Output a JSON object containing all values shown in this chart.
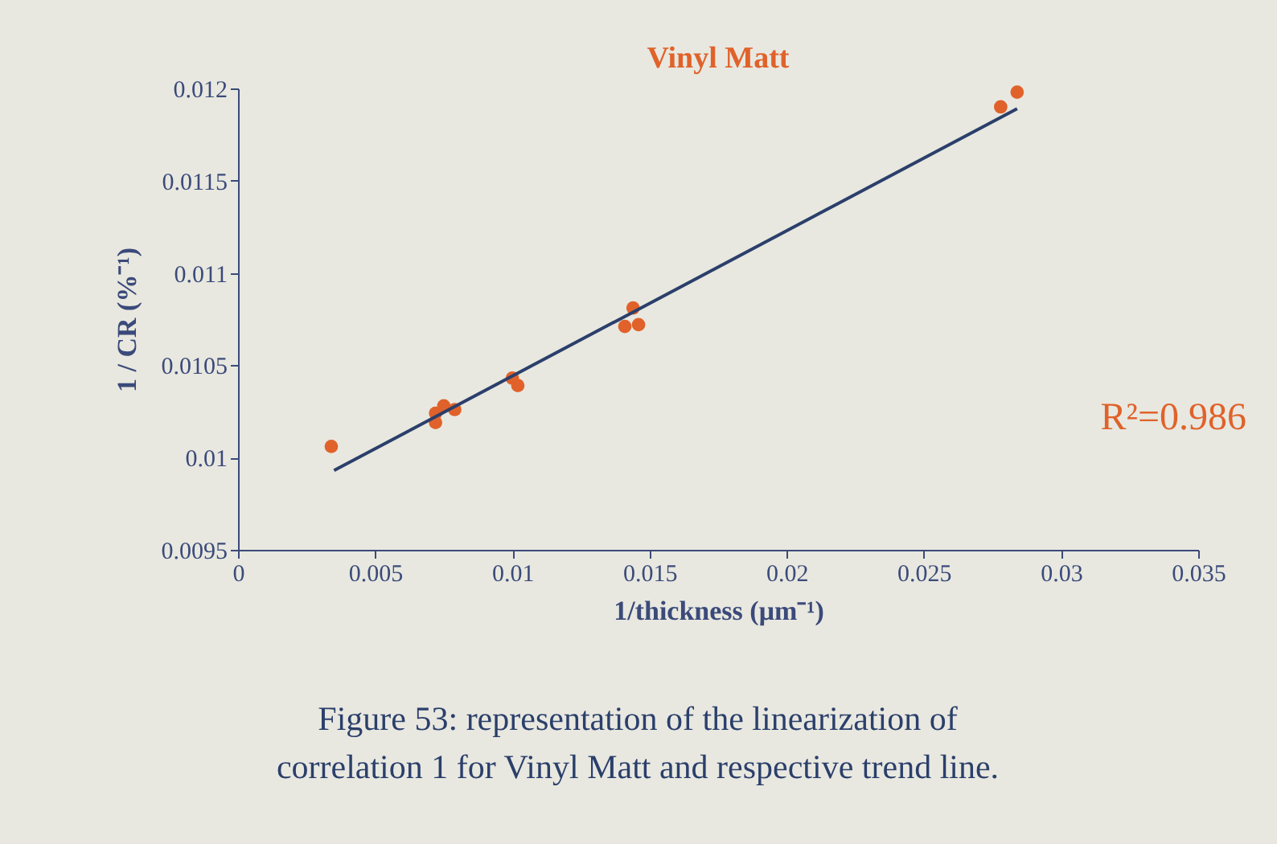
{
  "chart_data": {
    "type": "scatter",
    "title": "Vinyl Matt",
    "xlabel": "1/thickness (μm⁻¹)",
    "ylabel": "1 / CR (%⁻¹)",
    "annotations": [
      "R²=0.986",
      "Figure 53: representation of the linearization of\ncorrelation 1 for Vinyl Matt and respective trend line."
    ],
    "series": [
      {
        "color": "#e0622a",
        "marker": "circle",
        "x": [
          0.0034,
          0.0072,
          0.0072,
          0.0075,
          0.0079,
          0.01,
          0.0102,
          0.0141,
          0.0144,
          0.0146,
          0.0278,
          0.0284
        ],
        "values": [
          0.01006,
          0.01024,
          0.01019,
          0.01028,
          0.01026,
          0.01043,
          0.01039,
          0.01071,
          0.01081,
          0.01072,
          0.0119,
          0.01198
        ]
      },
      {
        "type": "line",
        "color": "#2b3f6b",
        "x": [
          0.0035,
          0.0284
        ],
        "values": [
          0.00993,
          0.01189
        ]
      }
    ],
    "xlim": [
      0,
      0.035
    ],
    "xticks": [
      0,
      0.005,
      0.01,
      0.015,
      0.02,
      0.025,
      0.03,
      0.035
    ],
    "ylim": [
      0.0095,
      0.012
    ],
    "yticks": [
      0.0095,
      0.01,
      0.0105,
      0.011,
      0.0115,
      0.012
    ],
    "grid": false
  }
}
